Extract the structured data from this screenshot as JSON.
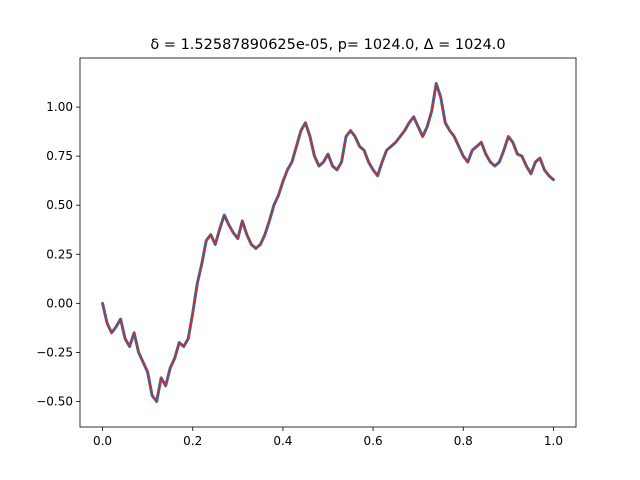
{
  "chart_data": {
    "type": "line",
    "title": "δ = 1.52587890625e-05, p= 1024.0, Δ = 1024.0",
    "xlabel": "",
    "ylabel": "",
    "xlim": [
      -0.05,
      1.05
    ],
    "ylim": [
      -0.63,
      1.25
    ],
    "xticks": [
      0.0,
      0.2,
      0.4,
      0.6,
      0.8,
      1.0
    ],
    "xtick_labels": [
      "0.0",
      "0.2",
      "0.4",
      "0.6",
      "0.8",
      "1.0"
    ],
    "yticks": [
      -0.5,
      -0.25,
      0.0,
      0.25,
      0.5,
      0.75,
      1.0
    ],
    "ytick_labels": [
      "−0.50",
      "−0.25",
      "0.00",
      "0.25",
      "0.50",
      "0.75",
      "1.00"
    ],
    "grid": false,
    "series": [
      {
        "color": "#1f77b4",
        "x": [
          0.0,
          0.01,
          0.02,
          0.03,
          0.04,
          0.05,
          0.06,
          0.07,
          0.08,
          0.09,
          0.1,
          0.11,
          0.12,
          0.13,
          0.14,
          0.15,
          0.16,
          0.17,
          0.18,
          0.19,
          0.2,
          0.21,
          0.22,
          0.23,
          0.24,
          0.25,
          0.26,
          0.27,
          0.28,
          0.29,
          0.3,
          0.31,
          0.32,
          0.33,
          0.34,
          0.35,
          0.36,
          0.37,
          0.38,
          0.39,
          0.4,
          0.41,
          0.42,
          0.43,
          0.44,
          0.45,
          0.46,
          0.47,
          0.48,
          0.49,
          0.5,
          0.51,
          0.52,
          0.53,
          0.54,
          0.55,
          0.56,
          0.57,
          0.58,
          0.59,
          0.6,
          0.61,
          0.62,
          0.63,
          0.64,
          0.65,
          0.66,
          0.67,
          0.68,
          0.69,
          0.7,
          0.71,
          0.72,
          0.73,
          0.74,
          0.75,
          0.76,
          0.77,
          0.78,
          0.79,
          0.8,
          0.81,
          0.82,
          0.83,
          0.84,
          0.85,
          0.86,
          0.87,
          0.88,
          0.89,
          0.9,
          0.91,
          0.92,
          0.93,
          0.94,
          0.95,
          0.96,
          0.97,
          0.98,
          0.99,
          1.0
        ],
        "y": [
          0.0,
          -0.1,
          -0.15,
          -0.12,
          -0.08,
          -0.18,
          -0.22,
          -0.15,
          -0.25,
          -0.3,
          -0.35,
          -0.47,
          -0.5,
          -0.38,
          -0.42,
          -0.33,
          -0.28,
          -0.2,
          -0.22,
          -0.18,
          -0.05,
          0.1,
          0.2,
          0.32,
          0.35,
          0.3,
          0.38,
          0.45,
          0.4,
          0.36,
          0.33,
          0.42,
          0.35,
          0.3,
          0.28,
          0.3,
          0.35,
          0.42,
          0.5,
          0.55,
          0.62,
          0.68,
          0.72,
          0.8,
          0.88,
          0.92,
          0.85,
          0.75,
          0.7,
          0.72,
          0.76,
          0.7,
          0.68,
          0.72,
          0.85,
          0.88,
          0.85,
          0.8,
          0.78,
          0.72,
          0.68,
          0.65,
          0.72,
          0.78,
          0.8,
          0.82,
          0.85,
          0.88,
          0.92,
          0.95,
          0.9,
          0.85,
          0.9,
          0.98,
          1.12,
          1.05,
          0.92,
          0.88,
          0.85,
          0.8,
          0.75,
          0.72,
          0.78,
          0.8,
          0.82,
          0.76,
          0.72,
          0.7,
          0.72,
          0.78,
          0.85,
          0.82,
          0.76,
          0.75,
          0.7,
          0.66,
          0.72,
          0.74,
          0.68,
          0.65,
          0.63
        ]
      },
      {
        "color": "#d62728",
        "style": "dashed",
        "x": [
          0.0,
          0.01,
          0.02,
          0.03,
          0.04,
          0.05,
          0.06,
          0.07,
          0.08,
          0.09,
          0.1,
          0.11,
          0.12,
          0.13,
          0.14,
          0.15,
          0.16,
          0.17,
          0.18,
          0.19,
          0.2,
          0.21,
          0.22,
          0.23,
          0.24,
          0.25,
          0.26,
          0.27,
          0.28,
          0.29,
          0.3,
          0.31,
          0.32,
          0.33,
          0.34,
          0.35,
          0.36,
          0.37,
          0.38,
          0.39,
          0.4,
          0.41,
          0.42,
          0.43,
          0.44,
          0.45,
          0.46,
          0.47,
          0.48,
          0.49,
          0.5,
          0.51,
          0.52,
          0.53,
          0.54,
          0.55,
          0.56,
          0.57,
          0.58,
          0.59,
          0.6,
          0.61,
          0.62,
          0.63,
          0.64,
          0.65,
          0.66,
          0.67,
          0.68,
          0.69,
          0.7,
          0.71,
          0.72,
          0.73,
          0.74,
          0.75,
          0.76,
          0.77,
          0.78,
          0.79,
          0.8,
          0.81,
          0.82,
          0.83,
          0.84,
          0.85,
          0.86,
          0.87,
          0.88,
          0.89,
          0.9,
          0.91,
          0.92,
          0.93,
          0.94,
          0.95,
          0.96,
          0.97,
          0.98,
          0.99,
          1.0
        ],
        "y": [
          0.0,
          -0.1,
          -0.15,
          -0.12,
          -0.08,
          -0.18,
          -0.22,
          -0.15,
          -0.25,
          -0.3,
          -0.35,
          -0.47,
          -0.5,
          -0.38,
          -0.42,
          -0.33,
          -0.28,
          -0.2,
          -0.22,
          -0.18,
          -0.05,
          0.1,
          0.2,
          0.32,
          0.35,
          0.3,
          0.38,
          0.45,
          0.4,
          0.36,
          0.33,
          0.42,
          0.35,
          0.3,
          0.28,
          0.3,
          0.35,
          0.42,
          0.5,
          0.55,
          0.62,
          0.68,
          0.72,
          0.8,
          0.88,
          0.92,
          0.85,
          0.75,
          0.7,
          0.72,
          0.76,
          0.7,
          0.68,
          0.72,
          0.85,
          0.88,
          0.85,
          0.8,
          0.78,
          0.72,
          0.68,
          0.65,
          0.72,
          0.78,
          0.8,
          0.82,
          0.85,
          0.88,
          0.92,
          0.95,
          0.9,
          0.85,
          0.9,
          0.98,
          1.12,
          1.05,
          0.92,
          0.88,
          0.85,
          0.8,
          0.75,
          0.72,
          0.78,
          0.8,
          0.82,
          0.76,
          0.72,
          0.7,
          0.72,
          0.78,
          0.85,
          0.82,
          0.76,
          0.75,
          0.7,
          0.66,
          0.72,
          0.74,
          0.68,
          0.65,
          0.63
        ]
      }
    ]
  }
}
